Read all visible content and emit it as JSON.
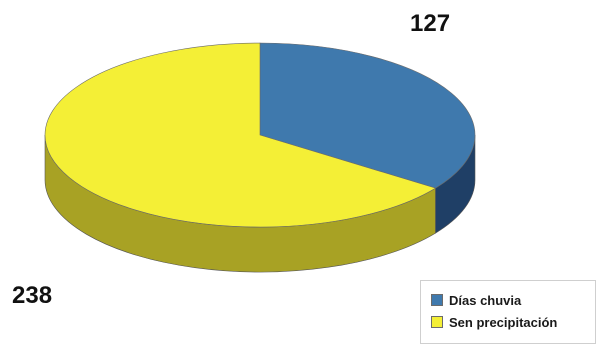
{
  "chart_data": {
    "type": "pie",
    "title": "",
    "slices": [
      {
        "label": "Días chuvia",
        "value": 127,
        "color": "#3f79ad",
        "side_color": "#1f3f66"
      },
      {
        "label": "Sen precipitación",
        "value": 238,
        "color": "#f4ef36",
        "side_color": "#a8a224"
      }
    ],
    "data_labels": [
      "127",
      "238"
    ],
    "legend": {
      "position": "bottom-right",
      "entries": [
        {
          "label": "Días chuvia",
          "color": "#3f79ad"
        },
        {
          "label": "Sen precipitación",
          "color": "#f4ef36"
        }
      ]
    }
  }
}
